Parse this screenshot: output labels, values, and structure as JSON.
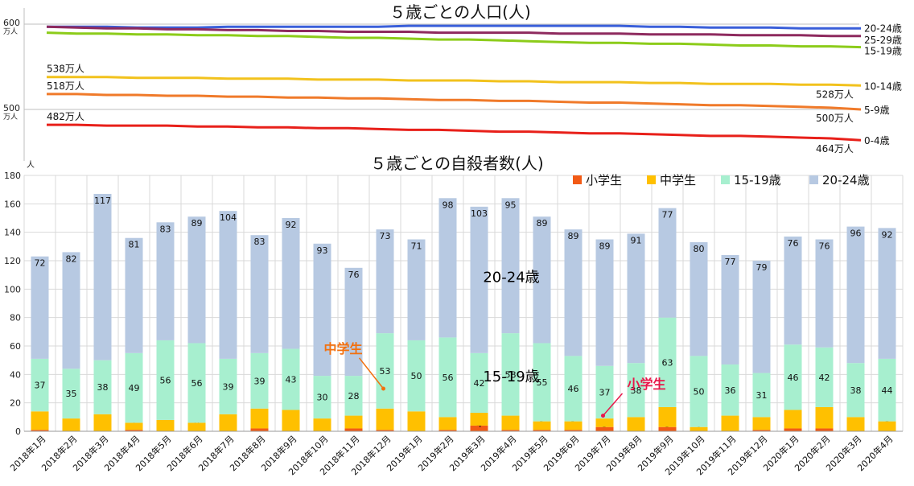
{
  "chart_data": [
    {
      "type": "line",
      "title": "５歳ごとの人口(人)",
      "yunit": "万人",
      "yaxis_unit_label": "人",
      "ylim": [
        460,
        600
      ],
      "yticks": [
        {
          "value": 600,
          "label": "600",
          "unit": "万人"
        },
        {
          "value": 500,
          "label": "500",
          "unit": "万人"
        }
      ],
      "x": [
        "2018年1月",
        "2018年2月",
        "2018年3月",
        "2018年4月",
        "2018年5月",
        "2018年6月",
        "2018年7月",
        "2018年8月",
        "2018年9月",
        "2018年10月",
        "2018年11月",
        "2018年12月",
        "2019年1月",
        "2019年2月",
        "2019年3月",
        "2019年4月",
        "2019年5月",
        "2019年6月",
        "2019年7月",
        "2019年8月",
        "2019年9月",
        "2019年10月",
        "2019年11月",
        "2019年12月",
        "2020年1月",
        "2020年2月",
        "2020年3月",
        "2020年4月"
      ],
      "series": [
        {
          "name": "20-24歳",
          "color": "#3a5fd9",
          "values": [
            597,
            597,
            597,
            596,
            596,
            596,
            597,
            597,
            597,
            597,
            597,
            597,
            598,
            598,
            598,
            598,
            598,
            598,
            598,
            598,
            597,
            597,
            596,
            596,
            596,
            595,
            595,
            595
          ]
        },
        {
          "name": "25-29歳",
          "color": "#8e2a5e",
          "values": [
            597,
            596,
            595,
            595,
            594,
            594,
            593,
            593,
            592,
            592,
            591,
            591,
            591,
            590,
            590,
            590,
            590,
            589,
            589,
            589,
            588,
            588,
            588,
            587,
            587,
            587,
            586,
            586
          ]
        },
        {
          "name": "15-19歳",
          "color": "#8ccc1a",
          "values": [
            590,
            589,
            589,
            588,
            588,
            587,
            587,
            586,
            586,
            585,
            584,
            584,
            583,
            582,
            582,
            581,
            580,
            579,
            578,
            578,
            577,
            577,
            576,
            575,
            575,
            574,
            574,
            573
          ]
        },
        {
          "name": "10-14歳",
          "color": "#f2c21d",
          "values": [
            538,
            538,
            538,
            537,
            537,
            537,
            536,
            536,
            536,
            535,
            535,
            535,
            534,
            534,
            534,
            533,
            533,
            532,
            532,
            532,
            531,
            531,
            530,
            530,
            530,
            529,
            529,
            528
          ]
        },
        {
          "name": "5-9歳",
          "color": "#f07a2a",
          "values": [
            518,
            518,
            517,
            517,
            516,
            516,
            515,
            515,
            514,
            514,
            513,
            513,
            512,
            511,
            511,
            510,
            510,
            509,
            508,
            508,
            507,
            506,
            505,
            505,
            504,
            503,
            502,
            500
          ]
        },
        {
          "name": "0-4歳",
          "color": "#e8201a",
          "values": [
            482,
            482,
            481,
            481,
            481,
            480,
            480,
            479,
            479,
            478,
            478,
            477,
            476,
            476,
            475,
            474,
            474,
            473,
            472,
            472,
            471,
            470,
            469,
            469,
            468,
            467,
            466,
            464
          ]
        }
      ],
      "line_labels": [
        {
          "text": "538万人",
          "series": "10-14歳"
        },
        {
          "text": "518万人",
          "series": "5-9歳"
        },
        {
          "text": "482万人",
          "series": "0-4歳"
        },
        {
          "text": "528万人",
          "series": "10-14歳"
        },
        {
          "text": "500万人",
          "series": "5-9歳"
        },
        {
          "text": "464万人",
          "series": "0-4歳"
        }
      ]
    },
    {
      "type": "bar",
      "stacked": true,
      "title": "５歳ごとの自殺者数(人)",
      "ylim": [
        0,
        180
      ],
      "yticks": [
        0,
        20,
        40,
        60,
        80,
        100,
        120,
        140,
        160,
        180
      ],
      "legend": [
        {
          "name": "小学生",
          "color": "#f25a15"
        },
        {
          "name": "中学生",
          "color": "#ffc000"
        },
        {
          "name": "15-19歳",
          "color": "#a7efcf"
        },
        {
          "name": "20-24歳",
          "color": "#b7c9e2"
        }
      ],
      "categories": [
        "2018年1月",
        "2018年2月",
        "2018年3月",
        "2018年4月",
        "2018年5月",
        "2018年6月",
        "2018年7月",
        "2018年8月",
        "2018年9月",
        "2018年10月",
        "2018年11月",
        "2018年12月",
        "2019年1月",
        "2019年2月",
        "2019年3月",
        "2019年4月",
        "2019年5月",
        "2019年6月",
        "2019年7月",
        "2019年8月",
        "2019年9月",
        "2019年10月",
        "2019年11月",
        "2019年12月",
        "2020年1月",
        "2020年2月",
        "2020年3月",
        "2020年4月"
      ],
      "series": [
        {
          "name": "小学生",
          "color": "#f25a15",
          "values": [
            1,
            0,
            0,
            1,
            0,
            0,
            0,
            2,
            0,
            0,
            2,
            1,
            0,
            1,
            4,
            1,
            1,
            1,
            3,
            0,
            3,
            0,
            0,
            1,
            2,
            2,
            0,
            0
          ]
        },
        {
          "name": "中学生",
          "color": "#ffc000",
          "values": [
            13,
            9,
            12,
            5,
            8,
            6,
            12,
            14,
            15,
            9,
            9,
            15,
            14,
            9,
            9,
            10,
            6,
            6,
            6,
            10,
            14,
            3,
            11,
            9,
            13,
            15,
            10,
            7
          ]
        },
        {
          "name": "15-19歳",
          "color": "#a7efcf",
          "values": [
            37,
            35,
            38,
            49,
            56,
            56,
            39,
            39,
            43,
            30,
            28,
            53,
            50,
            56,
            42,
            58,
            55,
            46,
            37,
            38,
            63,
            50,
            36,
            31,
            46,
            42,
            38,
            44
          ]
        },
        {
          "name": "20-24歳",
          "color": "#b7c9e2",
          "values": [
            72,
            82,
            117,
            81,
            83,
            89,
            104,
            83,
            92,
            93,
            76,
            73,
            71,
            98,
            103,
            95,
            89,
            89,
            89,
            91,
            77,
            80,
            77,
            79,
            76,
            76,
            96,
            92
          ]
        }
      ],
      "annotations": [
        {
          "text": "20-24歳",
          "color": "#000000",
          "size": "large",
          "near": "2019年3月",
          "value": 105
        },
        {
          "text": "15-19歳",
          "color": "#000000",
          "size": "large",
          "near": "2019年3月",
          "value": 35
        },
        {
          "text": "中学生",
          "color": "#f2700f",
          "target": "2018年12月",
          "target_value": 15,
          "value": 55
        },
        {
          "text": "小学生",
          "color": "#e8174a",
          "target": "2019年7月",
          "target_value": 3,
          "value": 30
        }
      ]
    }
  ]
}
